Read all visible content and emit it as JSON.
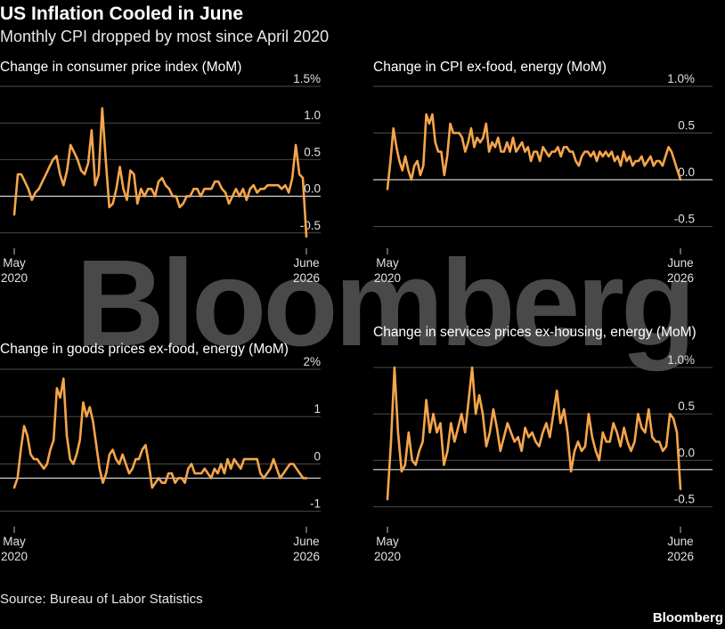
{
  "header": {
    "title": "US Inflation Cooled in June",
    "subtitle": "Monthly CPI dropped by most since April 2020"
  },
  "footer": {
    "source": "Source: Bureau of Labor Statistics",
    "logo": "Bloomberg"
  },
  "watermark": "Bloomberg",
  "colors": {
    "series": "#f6a54b",
    "background": "#000000",
    "grid": "#4a4a4a"
  },
  "chart_data": [
    {
      "type": "line",
      "title": "Change in consumer price index (MoM)",
      "x_start_label": [
        "May",
        "2020"
      ],
      "x_end_label": [
        "June",
        "2026"
      ],
      "ylim": [
        -0.6,
        1.5
      ],
      "yticks": [
        1.5,
        1.0,
        0.5,
        0.0,
        -0.5
      ],
      "ytick_labels": [
        "1.5%",
        "1.0",
        "0.5",
        "0.0",
        "-0.5"
      ],
      "zero": 0,
      "values": [
        -0.25,
        0.3,
        0.3,
        0.2,
        0.1,
        -0.05,
        0.05,
        0.1,
        0.2,
        0.3,
        0.4,
        0.5,
        0.55,
        0.3,
        0.15,
        0.35,
        0.7,
        0.6,
        0.5,
        0.35,
        0.3,
        0.45,
        0.9,
        0.15,
        0.3,
        1.2,
        0.5,
        -0.15,
        -0.1,
        0.1,
        0.4,
        0.1,
        -0.05,
        0.35,
        0.3,
        -0.1,
        0.1,
        0.0,
        0.1,
        0.1,
        0.0,
        0.2,
        0.25,
        0.15,
        0.1,
        0.0,
        0.0,
        -0.15,
        -0.1,
        0.0,
        0.0,
        0.1,
        0.1,
        0.0,
        0.1,
        0.1,
        0.1,
        0.2,
        0.2,
        0.1,
        0.05,
        -0.1,
        0.0,
        0.1,
        0.0,
        0.1,
        -0.05,
        0.1,
        0.15,
        0.05,
        0.1,
        0.1,
        0.15,
        0.15,
        0.15,
        0.15,
        0.1,
        0.15,
        0.05,
        0.25,
        0.7,
        0.3,
        0.25,
        -0.55
      ]
    },
    {
      "type": "line",
      "title": "Change in CPI ex-food, energy (MoM)",
      "x_start_label": [
        "May",
        "2020"
      ],
      "x_end_label": [
        "June",
        "2026"
      ],
      "ylim": [
        -0.6,
        1.0
      ],
      "yticks": [
        1.0,
        0.5,
        0.0,
        -0.5
      ],
      "ytick_labels": [
        "1.0%",
        "0.5",
        "0.0",
        "-0.5"
      ],
      "zero": 0,
      "values": [
        -0.1,
        0.2,
        0.55,
        0.35,
        0.2,
        0.1,
        0.25,
        0.1,
        0.0,
        0.15,
        0.2,
        0.05,
        0.15,
        0.7,
        0.6,
        0.7,
        0.4,
        0.3,
        0.3,
        0.05,
        0.25,
        0.6,
        0.5,
        0.5,
        0.5,
        0.45,
        0.3,
        0.4,
        0.55,
        0.35,
        0.45,
        0.4,
        0.45,
        0.6,
        0.3,
        0.4,
        0.35,
        0.45,
        0.3,
        0.3,
        0.4,
        0.3,
        0.45,
        0.3,
        0.35,
        0.4,
        0.3,
        0.35,
        0.2,
        0.3,
        0.3,
        0.2,
        0.35,
        0.3,
        0.25,
        0.3,
        0.3,
        0.35,
        0.25,
        0.35,
        0.35,
        0.3,
        0.3,
        0.2,
        0.15,
        0.25,
        0.3,
        0.3,
        0.25,
        0.3,
        0.2,
        0.3,
        0.25,
        0.3,
        0.25,
        0.3,
        0.2,
        0.25,
        0.15,
        0.3,
        0.2,
        0.25,
        0.15,
        0.2,
        0.2,
        0.25,
        0.15,
        0.2,
        0.25,
        0.15,
        0.2,
        0.2,
        0.15,
        0.25,
        0.35,
        0.3,
        0.2,
        0.1,
        0.0
      ]
    },
    {
      "type": "line",
      "title": "Change in goods prices ex-food, energy (MoM)",
      "x_start_label": [
        "May",
        "2020"
      ],
      "x_end_label": [
        "June",
        "2026"
      ],
      "ylim": [
        -1.1,
        2.0
      ],
      "yticks": [
        2,
        1,
        0,
        -1
      ],
      "ytick_labels": [
        "2%",
        "1",
        "0",
        "-1"
      ],
      "zero": -0.3,
      "values": [
        -0.5,
        -0.3,
        0.3,
        0.8,
        0.6,
        0.2,
        0.1,
        0.1,
        0.0,
        -0.1,
        0.0,
        0.3,
        0.5,
        1.6,
        1.4,
        1.8,
        0.6,
        0.1,
        0.0,
        0.2,
        0.5,
        1.3,
        1.0,
        1.2,
        0.9,
        0.4,
        -0.1,
        -0.4,
        -0.2,
        0.2,
        0.3,
        0.1,
        0.0,
        0.2,
        0.0,
        -0.2,
        -0.1,
        0.1,
        0.1,
        0.3,
        0.4,
        0.0,
        -0.5,
        -0.4,
        -0.3,
        -0.4,
        -0.4,
        -0.2,
        -0.2,
        -0.4,
        -0.3,
        -0.3,
        -0.4,
        -0.1,
        0.0,
        -0.2,
        -0.2,
        -0.2,
        -0.1,
        -0.2,
        -0.3,
        -0.1,
        -0.2,
        0.0,
        -0.2,
        0.1,
        -0.1,
        0.1,
        0.0,
        -0.1,
        0.1,
        0.1,
        0.1,
        0.1,
        0.1,
        -0.2,
        -0.3,
        -0.2,
        -0.1,
        0.1,
        -0.1,
        -0.3,
        -0.2,
        -0.1,
        0.0,
        0.0,
        -0.1,
        -0.2,
        -0.3,
        -0.3
      ]
    },
    {
      "type": "line",
      "title": "Change in services prices ex-housing, energy (MoM)",
      "x_start_label": [
        "May",
        "2020"
      ],
      "x_end_label": [
        "June",
        "2026"
      ],
      "ylim": [
        -0.6,
        1.05
      ],
      "yticks": [
        1.0,
        0.5,
        0.0,
        -0.5
      ],
      "ytick_labels": [
        "1.0%",
        "0.5",
        "0.0",
        "-0.5"
      ],
      "zero": -0.1,
      "values": [
        -0.42,
        0.2,
        1.0,
        0.3,
        -0.12,
        -0.05,
        0.3,
        0.0,
        -0.05,
        0.1,
        0.2,
        0.65,
        0.3,
        0.5,
        0.3,
        0.4,
        -0.05,
        0.1,
        0.4,
        0.2,
        0.35,
        0.5,
        0.3,
        0.65,
        1.0,
        0.5,
        0.7,
        0.5,
        0.15,
        0.3,
        0.55,
        0.35,
        0.1,
        0.25,
        0.4,
        0.3,
        0.2,
        0.25,
        0.1,
        0.35,
        0.25,
        0.3,
        0.2,
        0.15,
        0.3,
        0.4,
        0.25,
        0.5,
        0.75,
        0.4,
        0.55,
        0.3,
        -0.12,
        0.1,
        0.2,
        0.1,
        0.15,
        0.5,
        0.25,
        0.1,
        0.0,
        0.3,
        0.2,
        0.2,
        0.4,
        0.3,
        0.15,
        0.35,
        0.2,
        0.1,
        0.2,
        0.5,
        0.35,
        0.3,
        0.55,
        0.25,
        0.2,
        0.2,
        0.1,
        0.15,
        0.5,
        0.45,
        0.3,
        -0.31
      ]
    }
  ]
}
